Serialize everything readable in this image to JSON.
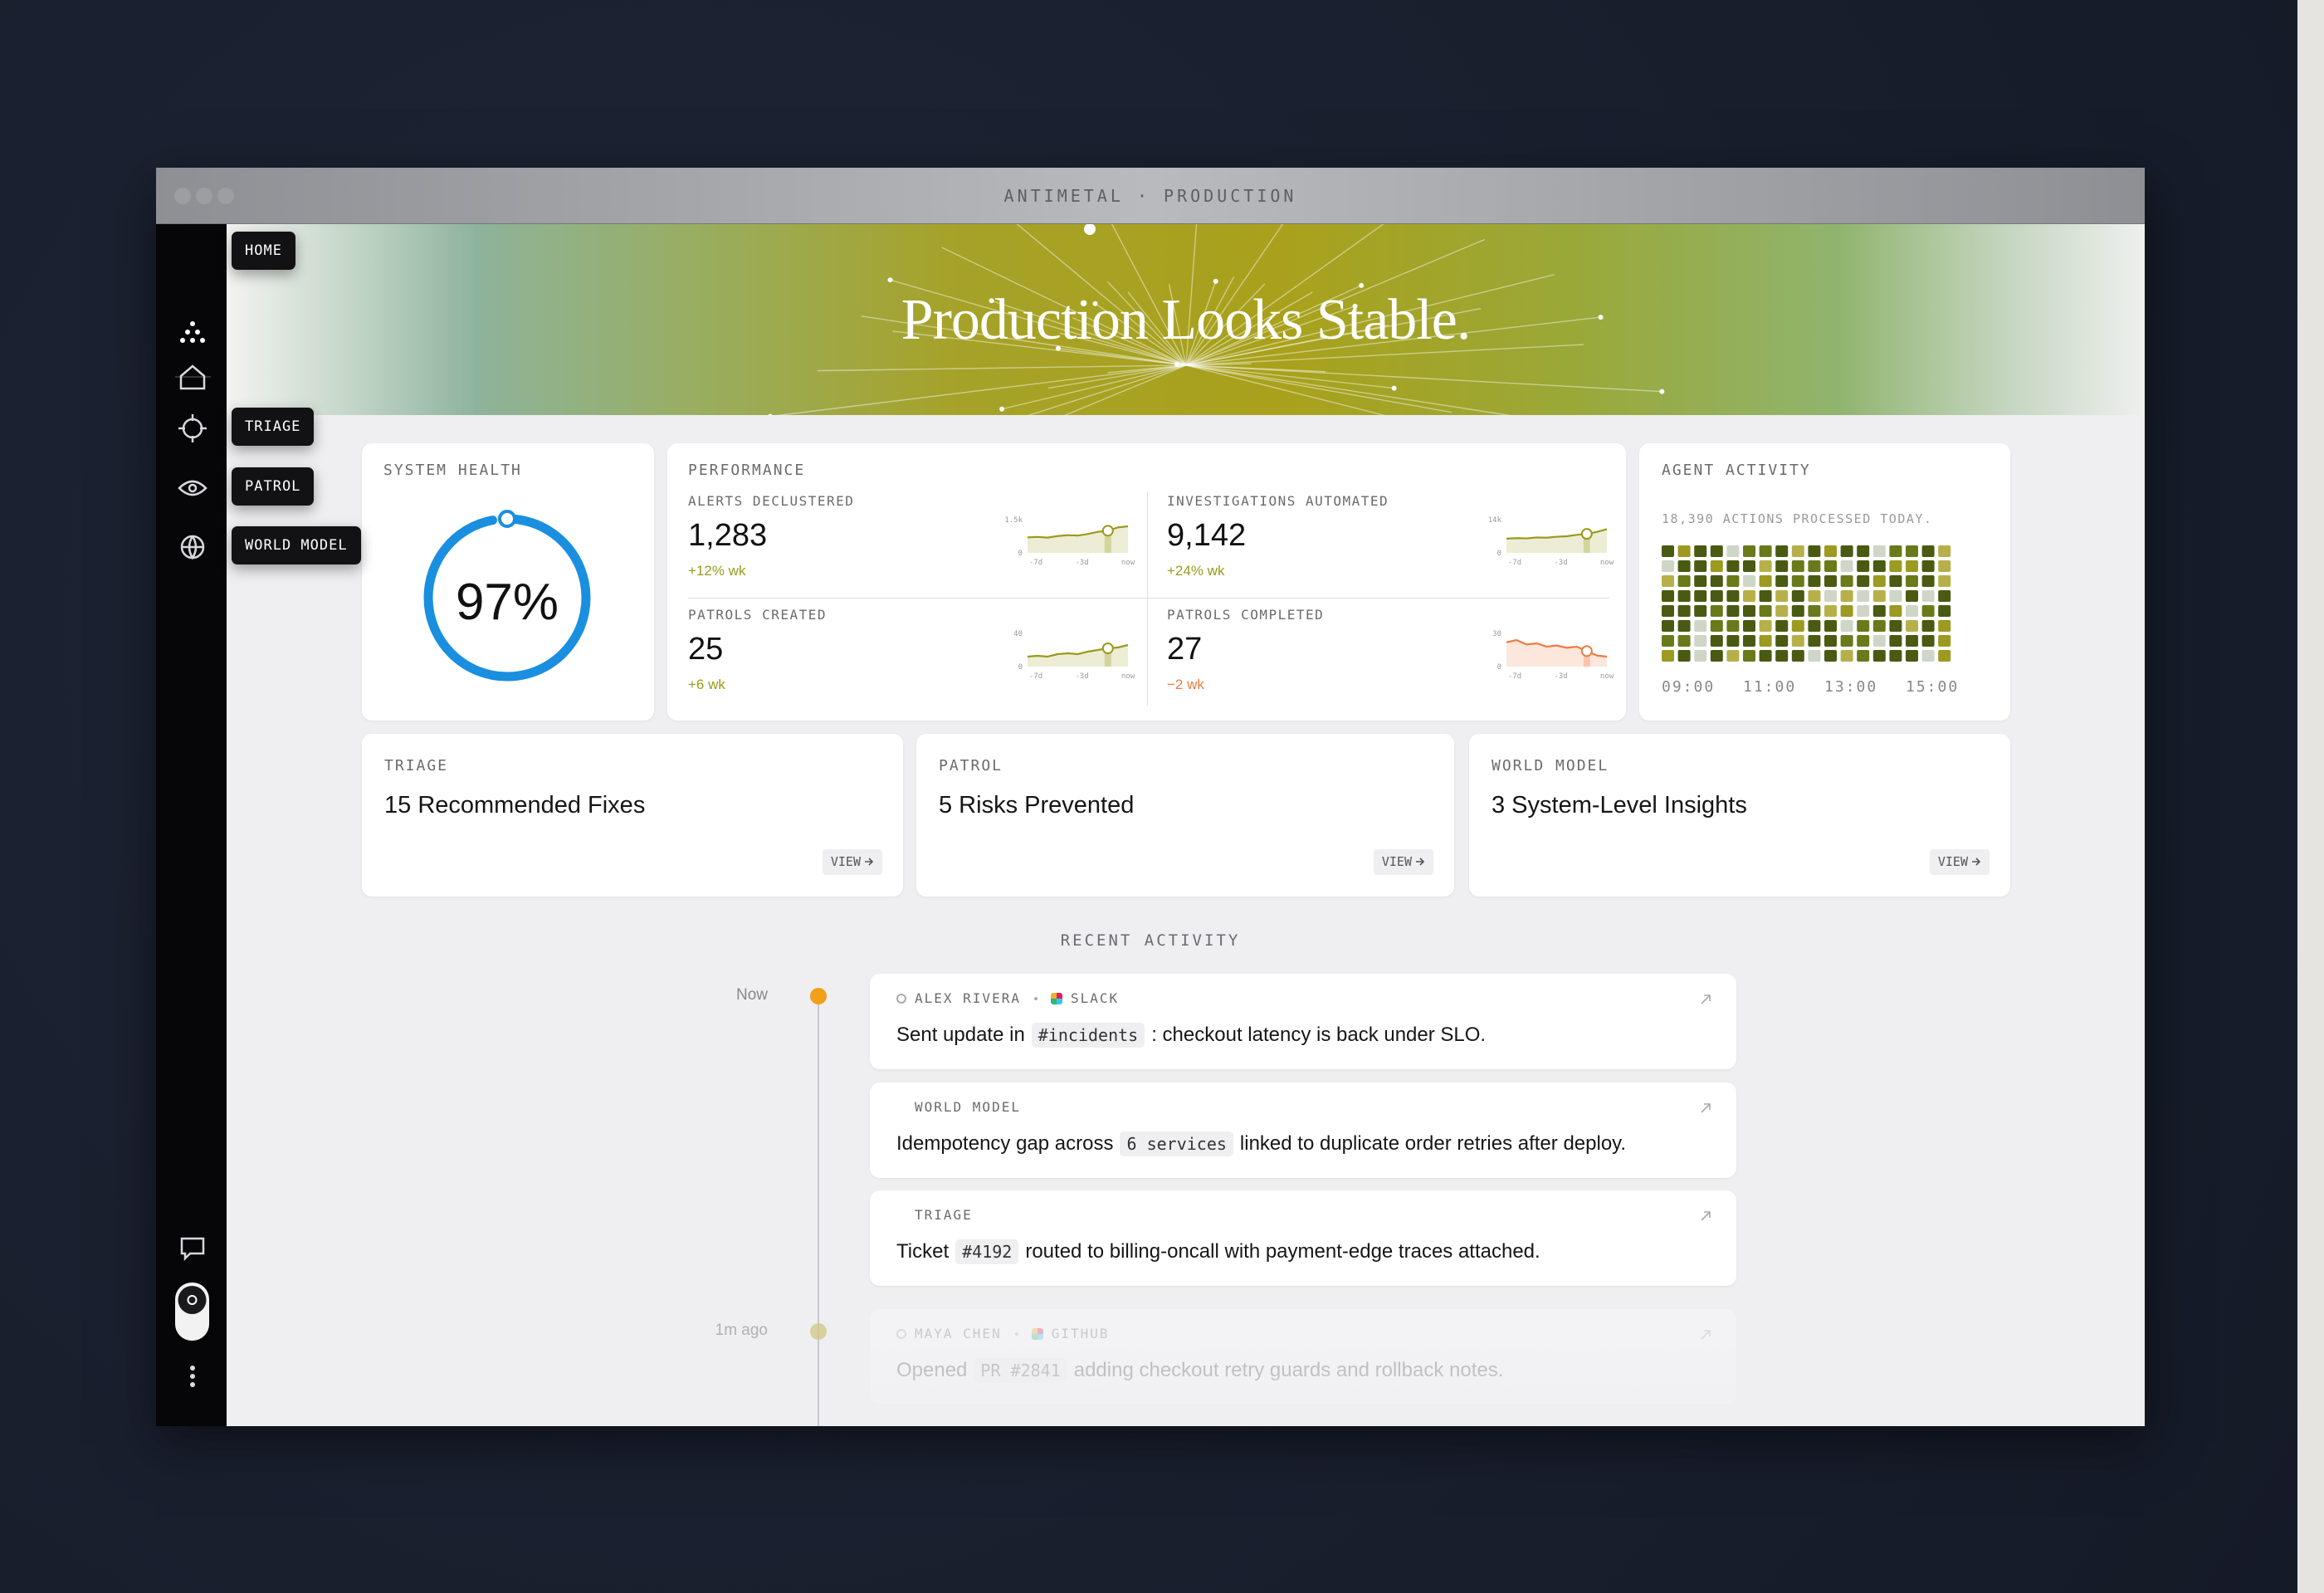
{
  "window": {
    "title": "ANTIMETAL · PRODUCTION"
  },
  "hero": {
    "title": "Production Looks Stable."
  },
  "sidebar": {
    "tooltips": [
      "HOME",
      "TRIAGE",
      "PATROL",
      "WORLD MODEL"
    ]
  },
  "system_health": {
    "title": "SYSTEM HEALTH",
    "score": {
      "value": 97,
      "label": "97%"
    },
    "color": "#1a8fe0"
  },
  "performance": {
    "title": "PERFORMANCE",
    "metrics": [
      {
        "label": "ALERTS DECLUSTERED",
        "value": "1,283",
        "delta": "+12% wk",
        "color": "#9a9a1a",
        "sparkline": {
          "values": [
            700,
            720,
            690,
            760,
            800,
            780,
            850,
            950,
            1000,
            1150,
            1200
          ],
          "ylim": [
            0,
            1500
          ],
          "yticks": [
            0,
            {
              "value": 1500,
              "label": "1.5k"
            }
          ],
          "xlabels": [
            "-7d",
            "-3d",
            "now"
          ]
        }
      },
      {
        "label": "INVESTIGATIONS AUTOMATED",
        "value": "9,142",
        "delta": "+24% wk",
        "color": "#9a9a1a",
        "sparkline": {
          "values": [
            6000,
            6200,
            6100,
            6500,
            6400,
            6800,
            7000,
            7600,
            8000,
            8800,
            10000
          ],
          "ylim": [
            0,
            14000
          ],
          "yticks": [
            0,
            {
              "value": 14000,
              "label": "14k"
            }
          ],
          "xlabels": [
            "-7d",
            "-3d",
            "now"
          ]
        }
      },
      {
        "label": "PATROLS CREATED",
        "value": "25",
        "delta": "+6 wk",
        "color": "#9a9a1a",
        "sparkline": {
          "values": [
            12,
            13,
            12,
            15,
            16,
            15,
            18,
            20,
            22,
            23,
            26
          ],
          "ylim": [
            0,
            40
          ],
          "yticks": [
            0,
            40
          ],
          "xlabels": [
            "-7d",
            "-3d",
            "now"
          ]
        }
      },
      {
        "label": "PATROLS COMPLETED",
        "value": "27",
        "delta": "−2 wk",
        "color": "#f07a40",
        "sparkline": {
          "values": [
            22,
            24,
            20,
            21,
            18,
            19,
            17,
            18,
            14,
            10,
            9
          ],
          "ylim": [
            0,
            30
          ],
          "yticks": [
            0,
            30
          ],
          "xlabels": [
            "-7d",
            "-3d",
            "now"
          ]
        }
      }
    ]
  },
  "agent_activity": {
    "title": "AGENT ACTIVITY",
    "summary": "18,390 ACTIONS PROCESSED TODAY.",
    "xlabels": [
      "09:00",
      "11:00",
      "13:00",
      "15:00"
    ]
  },
  "highlights": [
    {
      "title": "TRIAGE",
      "headline": "15 Recommended Fixes",
      "action": "VIEW"
    },
    {
      "title": "PATROL",
      "headline": "5 Risks Prevented",
      "action": "VIEW"
    },
    {
      "title": "WORLD MODEL",
      "headline": "3 System-Level Insights",
      "action": "VIEW"
    }
  ],
  "recent_activity": {
    "title": "RECENT ACTIVITY",
    "groups": [
      {
        "time": "Now",
        "items": [
          {
            "meta": [
              "ALEX RIVERA",
              "SLACK"
            ],
            "text": [
              "Sent update in",
              "#incidents",
              ": checkout latency is back under SLO."
            ]
          },
          {
            "meta": [
              "WORLD MODEL"
            ],
            "text": [
              "Idempotency gap across",
              "6 services",
              "linked to duplicate order retries after deploy."
            ]
          },
          {
            "meta": [
              "TRIAGE"
            ],
            "text": [
              "Ticket",
              "#4192",
              "routed to billing-oncall with payment-edge traces attached."
            ]
          }
        ]
      },
      {
        "time": "1m ago",
        "items": [
          {
            "meta": [
              "MAYA CHEN",
              "GITHUB"
            ],
            "text": [
              "Opened",
              "PR #2841",
              "adding checkout retry guards and rollback notes."
            ]
          }
        ]
      }
    ]
  }
}
